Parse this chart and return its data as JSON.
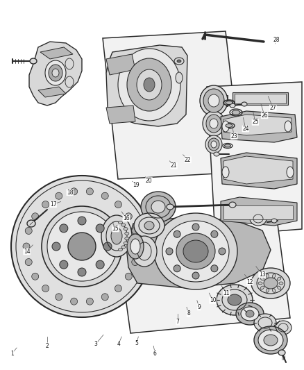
{
  "bg_color": "#ffffff",
  "line_color": "#2a2a2a",
  "fig_width": 4.38,
  "fig_height": 5.33,
  "dpi": 100,
  "labels": [
    [
      1,
      0.04,
      0.955,
      0.055,
      0.94
    ],
    [
      2,
      0.155,
      0.935,
      0.155,
      0.91
    ],
    [
      3,
      0.315,
      0.93,
      0.34,
      0.905
    ],
    [
      4,
      0.39,
      0.93,
      0.4,
      0.91
    ],
    [
      5,
      0.45,
      0.928,
      0.455,
      0.91
    ],
    [
      6,
      0.51,
      0.955,
      0.505,
      0.935
    ],
    [
      7,
      0.585,
      0.87,
      0.585,
      0.848
    ],
    [
      8,
      0.62,
      0.848,
      0.614,
      0.83
    ],
    [
      9,
      0.655,
      0.83,
      0.648,
      0.812
    ],
    [
      10,
      0.7,
      0.812,
      0.688,
      0.792
    ],
    [
      11,
      0.745,
      0.792,
      0.728,
      0.772
    ],
    [
      12,
      0.822,
      0.762,
      0.805,
      0.742
    ],
    [
      13,
      0.862,
      0.742,
      0.842,
      0.72
    ],
    [
      14,
      0.088,
      0.68,
      0.108,
      0.662
    ],
    [
      15,
      0.38,
      0.618,
      0.37,
      0.6
    ],
    [
      16,
      0.415,
      0.59,
      0.4,
      0.572
    ],
    [
      17,
      0.175,
      0.552,
      0.2,
      0.545
    ],
    [
      18,
      0.23,
      0.52,
      0.248,
      0.512
    ],
    [
      19,
      0.448,
      0.5,
      0.435,
      0.49
    ],
    [
      20,
      0.49,
      0.488,
      0.478,
      0.478
    ],
    [
      21,
      0.572,
      0.448,
      0.558,
      0.435
    ],
    [
      22,
      0.618,
      0.432,
      0.602,
      0.418
    ],
    [
      23,
      0.77,
      0.368,
      0.765,
      0.345
    ],
    [
      24,
      0.808,
      0.348,
      0.8,
      0.318
    ],
    [
      25,
      0.84,
      0.33,
      0.832,
      0.3
    ],
    [
      26,
      0.87,
      0.312,
      0.858,
      0.28
    ],
    [
      27,
      0.898,
      0.292,
      0.882,
      0.26
    ],
    [
      28,
      0.91,
      0.108,
      0.905,
      0.118
    ]
  ]
}
